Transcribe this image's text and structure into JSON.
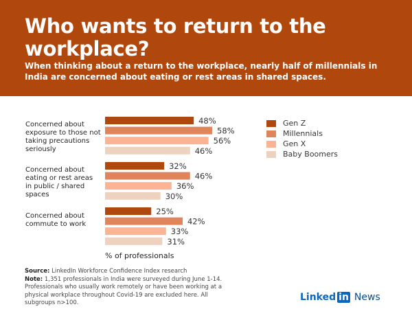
{
  "header": {
    "title": "Who wants to return to the workplace?",
    "subtitle": "When thinking about a return to the workplace, nearly half of millennials in India are concerned about eating or rest areas in shared spaces."
  },
  "chart_data": {
    "type": "bar",
    "orientation": "horizontal",
    "title": "Who wants to return to the workplace?",
    "categories": [
      "Concerned about exposure to those not taking precautions seriously",
      "Concerned about eating or rest areas in public / shared spaces",
      "Concerned about commute to work"
    ],
    "series": [
      {
        "name": "Gen Z",
        "color": "#b0470d",
        "values": [
          48,
          32,
          25
        ]
      },
      {
        "name": "Millennials",
        "color": "#e0845c",
        "values": [
          58,
          46,
          42
        ]
      },
      {
        "name": "Gen X",
        "color": "#fbb393",
        "values": [
          56,
          36,
          33
        ]
      },
      {
        "name": "Baby Boomers",
        "color": "#ecd2bf",
        "values": [
          46,
          30,
          31
        ]
      }
    ],
    "xlabel": "% of professionals",
    "value_suffix": "%",
    "legend": "right"
  },
  "footer": {
    "source_label": "Source:",
    "source": "LinkedIn Workforce Confidence Index research",
    "note_label": "Note:",
    "note": "1,351 professionals in India were surveyed during June 1-14. Professionals who usually work remotely or have been working at a physical workplace throughout Covid-19 are excluded here. All subgroups n>100."
  },
  "logo": {
    "linked": "Linked",
    "in": "in",
    "news": "News"
  }
}
